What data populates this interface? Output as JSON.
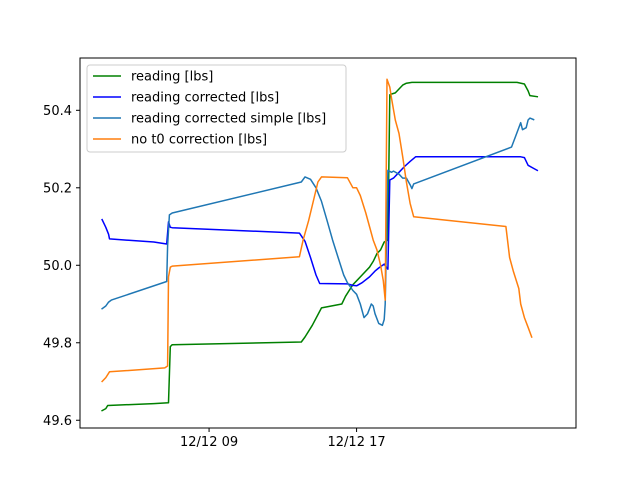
{
  "chart_data": {
    "type": "line",
    "title": "",
    "xlabel": "",
    "ylabel": "",
    "x_unit": "hours since 12/12 00:00",
    "xlim": [
      2.0,
      28.9
    ],
    "ylim": [
      49.58,
      50.535
    ],
    "grid": false,
    "legend_position": "upper left",
    "x_ticks": [
      {
        "value": 9,
        "label": "12/12 09"
      },
      {
        "value": 17,
        "label": "12/12 17"
      }
    ],
    "y_ticks": [
      {
        "value": 49.6,
        "label": "49.6"
      },
      {
        "value": 49.8,
        "label": "49.8"
      },
      {
        "value": 50.0,
        "label": "50.0"
      },
      {
        "value": 50.2,
        "label": "50.2"
      },
      {
        "value": 50.4,
        "label": "50.4"
      }
    ],
    "series": [
      {
        "name": "reading [lbs]",
        "color": "#008000",
        "points": [
          [
            3.2,
            49.625
          ],
          [
            3.4,
            49.63
          ],
          [
            3.5,
            49.638
          ],
          [
            6.0,
            49.643
          ],
          [
            6.8,
            49.645
          ],
          [
            6.9,
            49.79
          ],
          [
            7.0,
            49.795
          ],
          [
            14.0,
            49.802
          ],
          [
            14.2,
            49.815
          ],
          [
            14.6,
            49.845
          ],
          [
            15.1,
            49.89
          ],
          [
            16.2,
            49.9
          ],
          [
            16.4,
            49.92
          ],
          [
            16.8,
            49.95
          ],
          [
            17.0,
            49.96
          ],
          [
            17.3,
            49.975
          ],
          [
            17.7,
            49.995
          ],
          [
            17.9,
            50.01
          ],
          [
            18.1,
            50.03
          ],
          [
            18.3,
            50.04
          ],
          [
            18.5,
            50.06
          ],
          [
            18.7,
            50.065
          ],
          [
            18.8,
            50.44
          ],
          [
            18.9,
            50.442
          ],
          [
            19.1,
            50.445
          ],
          [
            19.3,
            50.455
          ],
          [
            19.5,
            50.465
          ],
          [
            19.7,
            50.47
          ],
          [
            20.0,
            50.472
          ],
          [
            25.7,
            50.472
          ],
          [
            26.1,
            50.468
          ],
          [
            26.3,
            50.45
          ],
          [
            26.4,
            50.438
          ],
          [
            26.8,
            50.435
          ]
        ]
      },
      {
        "name": "reading corrected [lbs]",
        "color": "#0000ff",
        "points": [
          [
            3.2,
            50.118
          ],
          [
            3.4,
            50.098
          ],
          [
            3.55,
            50.08
          ],
          [
            3.6,
            50.068
          ],
          [
            6.0,
            50.06
          ],
          [
            6.7,
            50.055
          ],
          [
            6.8,
            50.112
          ],
          [
            6.9,
            50.098
          ],
          [
            7.0,
            50.097
          ],
          [
            13.9,
            50.083
          ],
          [
            14.2,
            50.062
          ],
          [
            14.5,
            50.02
          ],
          [
            14.8,
            49.975
          ],
          [
            15.0,
            49.953
          ],
          [
            16.5,
            49.952
          ],
          [
            16.8,
            49.948
          ],
          [
            17.0,
            49.947
          ],
          [
            17.3,
            49.955
          ],
          [
            17.7,
            49.97
          ],
          [
            18.0,
            49.985
          ],
          [
            18.2,
            49.993
          ],
          [
            18.5,
            50.003
          ],
          [
            18.7,
            49.99
          ],
          [
            18.8,
            50.22
          ],
          [
            19.0,
            50.225
          ],
          [
            19.3,
            50.24
          ],
          [
            19.6,
            50.255
          ],
          [
            19.9,
            50.268
          ],
          [
            20.2,
            50.28
          ],
          [
            25.9,
            50.28
          ],
          [
            26.1,
            50.278
          ],
          [
            26.3,
            50.258
          ],
          [
            26.6,
            50.25
          ],
          [
            26.8,
            50.245
          ]
        ]
      },
      {
        "name": "reading corrected simple [lbs]",
        "color": "#1f77b4",
        "points": [
          [
            3.2,
            49.888
          ],
          [
            3.4,
            49.895
          ],
          [
            3.55,
            49.905
          ],
          [
            3.7,
            49.91
          ],
          [
            6.7,
            49.958
          ],
          [
            6.75,
            50.05
          ],
          [
            6.85,
            50.13
          ],
          [
            7.0,
            50.135
          ],
          [
            14.0,
            50.215
          ],
          [
            14.2,
            50.228
          ],
          [
            14.5,
            50.222
          ],
          [
            14.8,
            50.2
          ],
          [
            15.1,
            50.165
          ],
          [
            15.4,
            50.115
          ],
          [
            15.7,
            50.065
          ],
          [
            16.0,
            50.02
          ],
          [
            16.3,
            49.975
          ],
          [
            16.5,
            49.955
          ],
          [
            16.8,
            49.935
          ],
          [
            17.0,
            49.925
          ],
          [
            17.2,
            49.9
          ],
          [
            17.4,
            49.865
          ],
          [
            17.6,
            49.875
          ],
          [
            17.8,
            49.9
          ],
          [
            17.9,
            49.895
          ],
          [
            18.0,
            49.875
          ],
          [
            18.2,
            49.85
          ],
          [
            18.4,
            49.845
          ],
          [
            18.5,
            49.86
          ],
          [
            18.55,
            49.9
          ],
          [
            18.7,
            50.245
          ],
          [
            18.9,
            50.24
          ],
          [
            19.0,
            50.243
          ],
          [
            19.3,
            50.235
          ],
          [
            19.5,
            50.225
          ],
          [
            19.7,
            50.225
          ],
          [
            19.9,
            50.208
          ],
          [
            20.0,
            50.198
          ],
          [
            20.1,
            50.21
          ],
          [
            25.4,
            50.305
          ],
          [
            25.6,
            50.33
          ],
          [
            25.8,
            50.355
          ],
          [
            25.9,
            50.368
          ],
          [
            26.0,
            50.35
          ],
          [
            26.2,
            50.355
          ],
          [
            26.3,
            50.375
          ],
          [
            26.4,
            50.38
          ],
          [
            26.6,
            50.376
          ]
        ]
      },
      {
        "name": "no t0 correction [lbs]",
        "color": "#ff7f0e",
        "points": [
          [
            3.2,
            49.7
          ],
          [
            3.4,
            49.71
          ],
          [
            3.6,
            49.725
          ],
          [
            6.6,
            49.735
          ],
          [
            6.75,
            49.74
          ],
          [
            6.8,
            49.97
          ],
          [
            6.9,
            49.995
          ],
          [
            7.0,
            49.998
          ],
          [
            13.9,
            50.022
          ],
          [
            14.1,
            50.065
          ],
          [
            14.4,
            50.115
          ],
          [
            14.7,
            50.175
          ],
          [
            14.9,
            50.215
          ],
          [
            15.1,
            50.228
          ],
          [
            16.5,
            50.226
          ],
          [
            16.8,
            50.2
          ],
          [
            17.0,
            50.2
          ],
          [
            17.2,
            50.18
          ],
          [
            17.5,
            50.135
          ],
          [
            17.7,
            50.1
          ],
          [
            17.9,
            50.065
          ],
          [
            18.1,
            50.04
          ],
          [
            18.3,
            50.0
          ],
          [
            18.45,
            49.96
          ],
          [
            18.55,
            49.91
          ],
          [
            18.65,
            50.48
          ],
          [
            18.8,
            50.46
          ],
          [
            18.9,
            50.43
          ],
          [
            19.1,
            50.375
          ],
          [
            19.3,
            50.34
          ],
          [
            19.5,
            50.28
          ],
          [
            19.7,
            50.215
          ],
          [
            19.9,
            50.16
          ],
          [
            20.1,
            50.125
          ],
          [
            25.1,
            50.1
          ],
          [
            25.3,
            50.02
          ],
          [
            25.5,
            49.985
          ],
          [
            25.8,
            49.94
          ],
          [
            25.9,
            49.9
          ],
          [
            26.1,
            49.865
          ],
          [
            26.3,
            49.84
          ],
          [
            26.5,
            49.815
          ]
        ]
      }
    ]
  }
}
